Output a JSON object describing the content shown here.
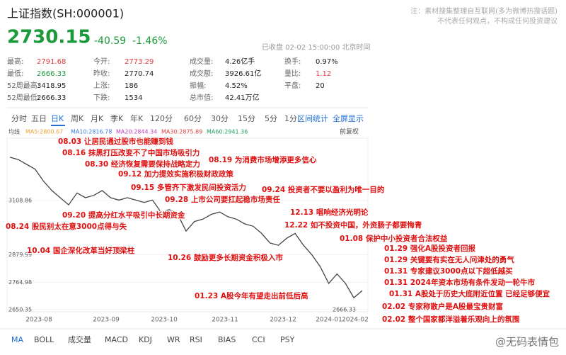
{
  "header": {
    "title": "上证指数(SH:000001)",
    "price": "2730.15",
    "change": "-40.59",
    "change_pct": "-1.46%",
    "status": "已收盘 02-02 15:00:00 北京时间",
    "disclaimer": [
      "注：素材搜集整理自互联网(多为微博热搜话题)",
      "不代表任何观点，不构成任何投资建议"
    ]
  },
  "stats": [
    [
      {
        "label": "最高:",
        "value": "2791.68",
        "color": "#e4393c"
      },
      {
        "label": "今开:",
        "value": "2773.29",
        "color": "#e4393c"
      },
      {
        "label": "成交量:",
        "value": "4.26亿手",
        "color": "#222"
      },
      {
        "label": "换手:",
        "value": "0.97%",
        "color": "#222"
      }
    ],
    [
      {
        "label": "最低:",
        "value": "2666.33",
        "color": "#1a9a3a"
      },
      {
        "label": "昨收:",
        "value": "2770.74",
        "color": "#222"
      },
      {
        "label": "成交额:",
        "value": "3926.61亿",
        "color": "#222"
      },
      {
        "label": "量比:",
        "value": "1.12",
        "color": "#e4393c"
      }
    ],
    [
      {
        "label": "52周最高:",
        "value": "3418.95",
        "color": "#222"
      },
      {
        "label": "上涨:",
        "value": "186",
        "color": "#222"
      },
      {
        "label": "振幅:",
        "value": "4.52%",
        "color": "#222"
      },
      {
        "label": "平盘:",
        "value": "20",
        "color": "#222"
      }
    ],
    [
      {
        "label": "52周最低:",
        "value": "2666.33",
        "color": "#222"
      },
      {
        "label": "下跌:",
        "value": "1534",
        "color": "#222"
      },
      {
        "label": "总市值:",
        "value": "42.41万亿",
        "color": "#222"
      }
    ]
  ],
  "period_tabs": [
    "分时",
    "五日",
    "日K",
    "周K",
    "月K",
    "季K",
    "年K",
    "120分",
    "60分",
    "30分",
    "15分",
    "5分",
    "1分"
  ],
  "tools": [
    "区间统计",
    "全屏显示"
  ],
  "indicator_tabs": [
    "MA",
    "BOLL",
    "成交量",
    "MACD",
    "KDJ",
    "WR",
    "RSI",
    "BIAS",
    "CCI",
    "PSY"
  ],
  "watermark": "@无码表情包",
  "chart_data": {
    "type": "line",
    "legend": [
      {
        "name": "均线",
        "color": "#555"
      },
      {
        "name": "MA5:2800.67",
        "color": "#f0a030"
      },
      {
        "name": "MA10:2816.78",
        "color": "#3b7ddd"
      },
      {
        "name": "MA20:2844.34",
        "color": "#c040c0"
      },
      {
        "name": "MA30:2875.89",
        "color": "#e04040"
      },
      {
        "name": "MA60:2941.36",
        "color": "#20a060"
      }
    ],
    "adjust": "前复权",
    "ylim": [
      2641,
      3370
    ],
    "yticks": [
      3108.86,
      2879.99,
      2764.98,
      2650.35
    ],
    "low_label": "2666.33",
    "x_labels": [
      "2023-08",
      "2023-09",
      "2023-10",
      "2023-11",
      "2023-12",
      "2024-01",
      "2024-02"
    ],
    "series": [
      {
        "name": "收盘",
        "color": "#444",
        "values": [
          3290,
          3280,
          3260,
          3240,
          3190,
          3150,
          3120,
          3090,
          3140,
          3120,
          3130,
          3150,
          3120,
          3110,
          3120,
          3110,
          3100,
          3110,
          3060,
          3070,
          3050,
          2980,
          3020,
          3030,
          3050,
          3060,
          3040,
          3030,
          3010,
          3000,
          2970,
          2930,
          2920,
          2950,
          2970,
          2920,
          2880,
          2830,
          2760,
          2800,
          2760,
          2700,
          2730
        ]
      }
    ],
    "annotations": [
      "08.03 让居民通过股市也能赚到钱",
      "08.16 抹黑打压改变不了中国市场吸引力",
      "08.30 经济恢复需要保持战略定力",
      "08.19 为消费市场增添更多信心",
      "09.12 加力提效实施积极财政政策",
      "09.15 多管齐下激发民间投资活力",
      "09.24 投资者不要以盈利为唯一目的",
      "09.28 上市公司要扛起稳市场责任",
      "09.20 提高分红水平吸引中长期资金",
      "12.13 唱响经济光明论",
      "08.24 股民别太在意3000点得与失",
      "12.22 如不投资中国，外资肠子都要悔青",
      "01.08 保护中小投资者合法权益",
      "10.04 国企深化改革当好顶梁柱",
      "01.29 强化A股投资者回报",
      "10.26 鼓励更多长期资金积极入市",
      "01.29 关键要有实在无人问津处的勇气",
      "01.31 专家建议3000点以下超低越买",
      "01.31 2024年资本市场有条件发动一轮牛市",
      "01.23 A股今年有望走出前低后高",
      "01.31 A股处于历史大底附近位置 已经足够便宜",
      "02.02 专家称散户是A股最宝贵财富",
      "02.02 整个国家都洋溢着乐观向上的氛围"
    ]
  }
}
